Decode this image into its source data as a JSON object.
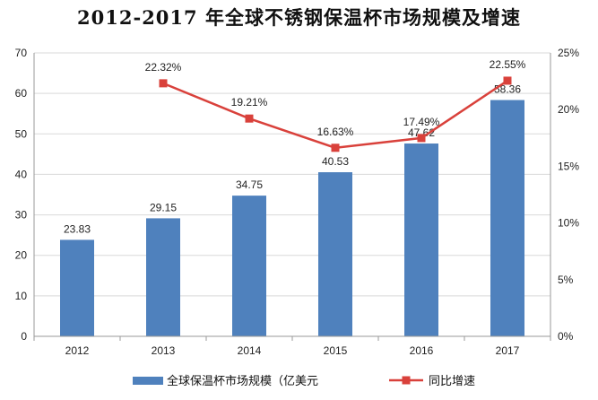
{
  "title": "2012-2017 年全球不锈钢保温杯市场规模及增速",
  "chart_data": {
    "type": "bar+line",
    "categories": [
      "2012",
      "2013",
      "2014",
      "2015",
      "2016",
      "2017"
    ],
    "series": [
      {
        "name": "全球保温杯市场规模（亿美元",
        "type": "bar",
        "axis": "left",
        "values": [
          23.83,
          29.15,
          34.75,
          40.53,
          47.62,
          58.36
        ],
        "labels": [
          "23.83",
          "29.15",
          "34.75",
          "40.53",
          "47.62",
          "58.36"
        ],
        "color": "#4F81BD"
      },
      {
        "name": "同比增速",
        "type": "line",
        "axis": "right",
        "values": [
          null,
          22.32,
          19.21,
          16.63,
          17.49,
          22.55
        ],
        "labels": [
          "",
          "22.32%",
          "19.21%",
          "16.63%",
          "17.49%",
          "22.55%"
        ],
        "color": "#D9413B"
      }
    ],
    "y_left": {
      "range": [
        0,
        70
      ],
      "ticks": [
        "0",
        "10",
        "20",
        "30",
        "40",
        "50",
        "60",
        "70"
      ]
    },
    "y_right": {
      "range": [
        0,
        25
      ],
      "ticks": [
        "0%",
        "5%",
        "10%",
        "15%",
        "20%",
        "25%"
      ]
    },
    "grid": true,
    "legend": "bottom"
  }
}
